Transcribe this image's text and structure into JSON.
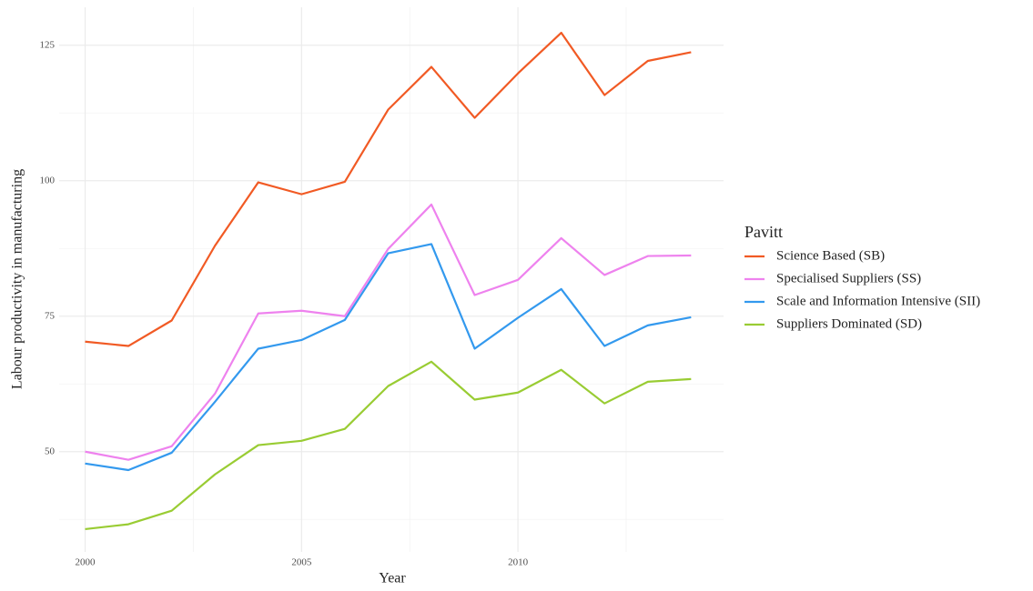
{
  "chart_data": {
    "type": "line",
    "x_label": "Year",
    "y_label": "Labour productivity in manufacturing",
    "legend_title": "Pavitt",
    "legend_position": "right",
    "grid": true,
    "x": [
      2000,
      2001,
      2002,
      2003,
      2004,
      2005,
      2006,
      2007,
      2008,
      2009,
      2010,
      2011,
      2012,
      2013,
      2014
    ],
    "xlim": [
      1999.4,
      2014.75
    ],
    "xticks": [
      2000,
      2005,
      2010
    ],
    "ylim": [
      31.5,
      132
    ],
    "yticks": [
      50,
      75,
      100,
      125
    ],
    "series": [
      {
        "name": "Science Based (SB)",
        "color": "#f15a24",
        "values": [
          70.3,
          69.5,
          74.2,
          88,
          99.7,
          97.5,
          99.8,
          113.1,
          121,
          111.6,
          119.8,
          127.3,
          115.8,
          122.1,
          123.7
        ]
      },
      {
        "name": "Specialised Suppliers (SS)",
        "color": "#ee82ee",
        "values": [
          50,
          48.5,
          51,
          60.7,
          75.5,
          76,
          75,
          87.4,
          95.6,
          78.9,
          81.7,
          89.4,
          82.6,
          86.1,
          86.2
        ]
      },
      {
        "name": "Scale and Information Intensive (SII)",
        "color": "#3399ee",
        "values": [
          47.8,
          46.6,
          49.8,
          59.2,
          69,
          70.6,
          74.3,
          86.6,
          88.3,
          69,
          74.7,
          80,
          69.5,
          73.3,
          74.8
        ]
      },
      {
        "name": "Suppliers Dominated (SD)",
        "color": "#99cc33",
        "values": [
          35.7,
          36.6,
          39.1,
          45.8,
          51.2,
          52,
          54.2,
          62.1,
          66.6,
          59.6,
          60.9,
          65.1,
          58.9,
          62.9,
          63.4
        ]
      }
    ]
  }
}
